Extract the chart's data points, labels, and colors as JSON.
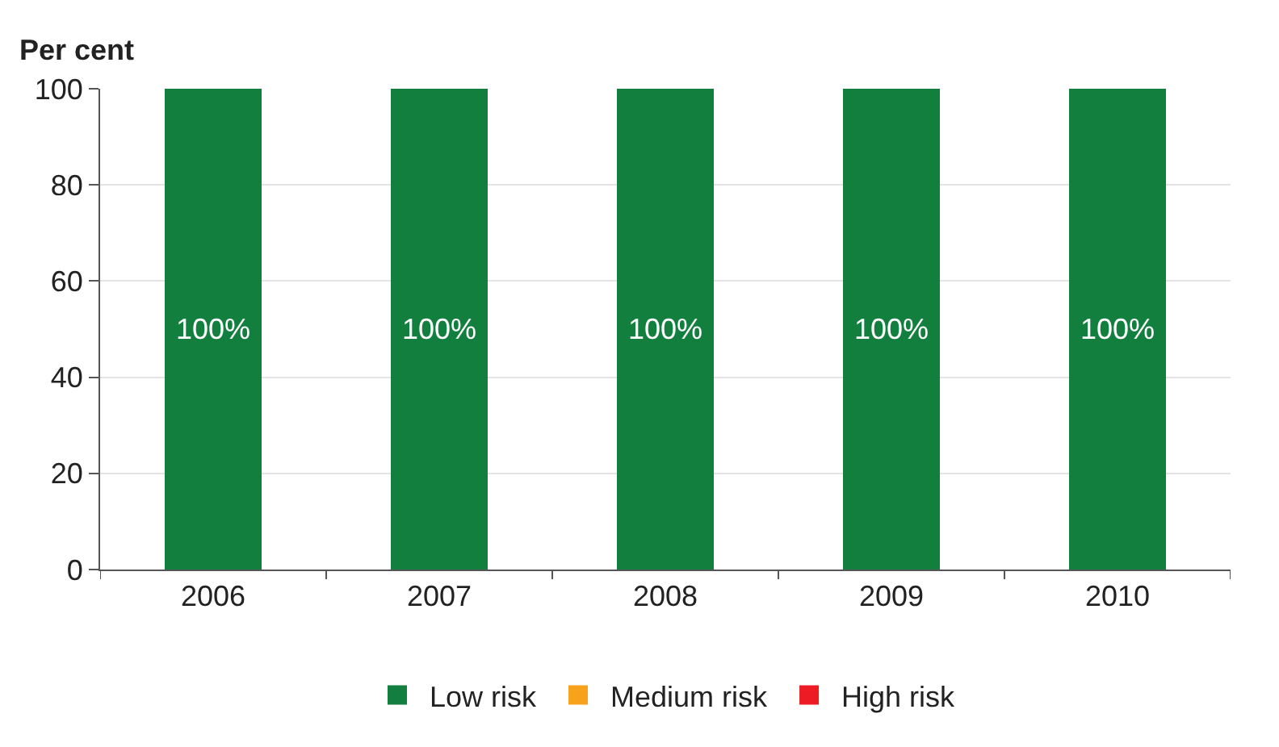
{
  "chart_data": {
    "type": "bar",
    "stacked": true,
    "ylabel": "Per cent",
    "categories": [
      "2006",
      "2007",
      "2008",
      "2009",
      "2010"
    ],
    "series": [
      {
        "name": "Low risk",
        "color": "#137f3f",
        "values": [
          100,
          100,
          100,
          100,
          100
        ],
        "value_labels": [
          "100%",
          "100%",
          "100%",
          "100%",
          "100%"
        ]
      },
      {
        "name": "Medium risk",
        "color": "#f7a21b",
        "values": [
          0,
          0,
          0,
          0,
          0
        ]
      },
      {
        "name": "High risk",
        "color": "#ed1c24",
        "values": [
          0,
          0,
          0,
          0,
          0
        ]
      }
    ],
    "ylim": [
      0,
      100
    ],
    "yticks": [
      0,
      20,
      40,
      60,
      80,
      100
    ],
    "grid": "y",
    "legend": "bottom"
  }
}
